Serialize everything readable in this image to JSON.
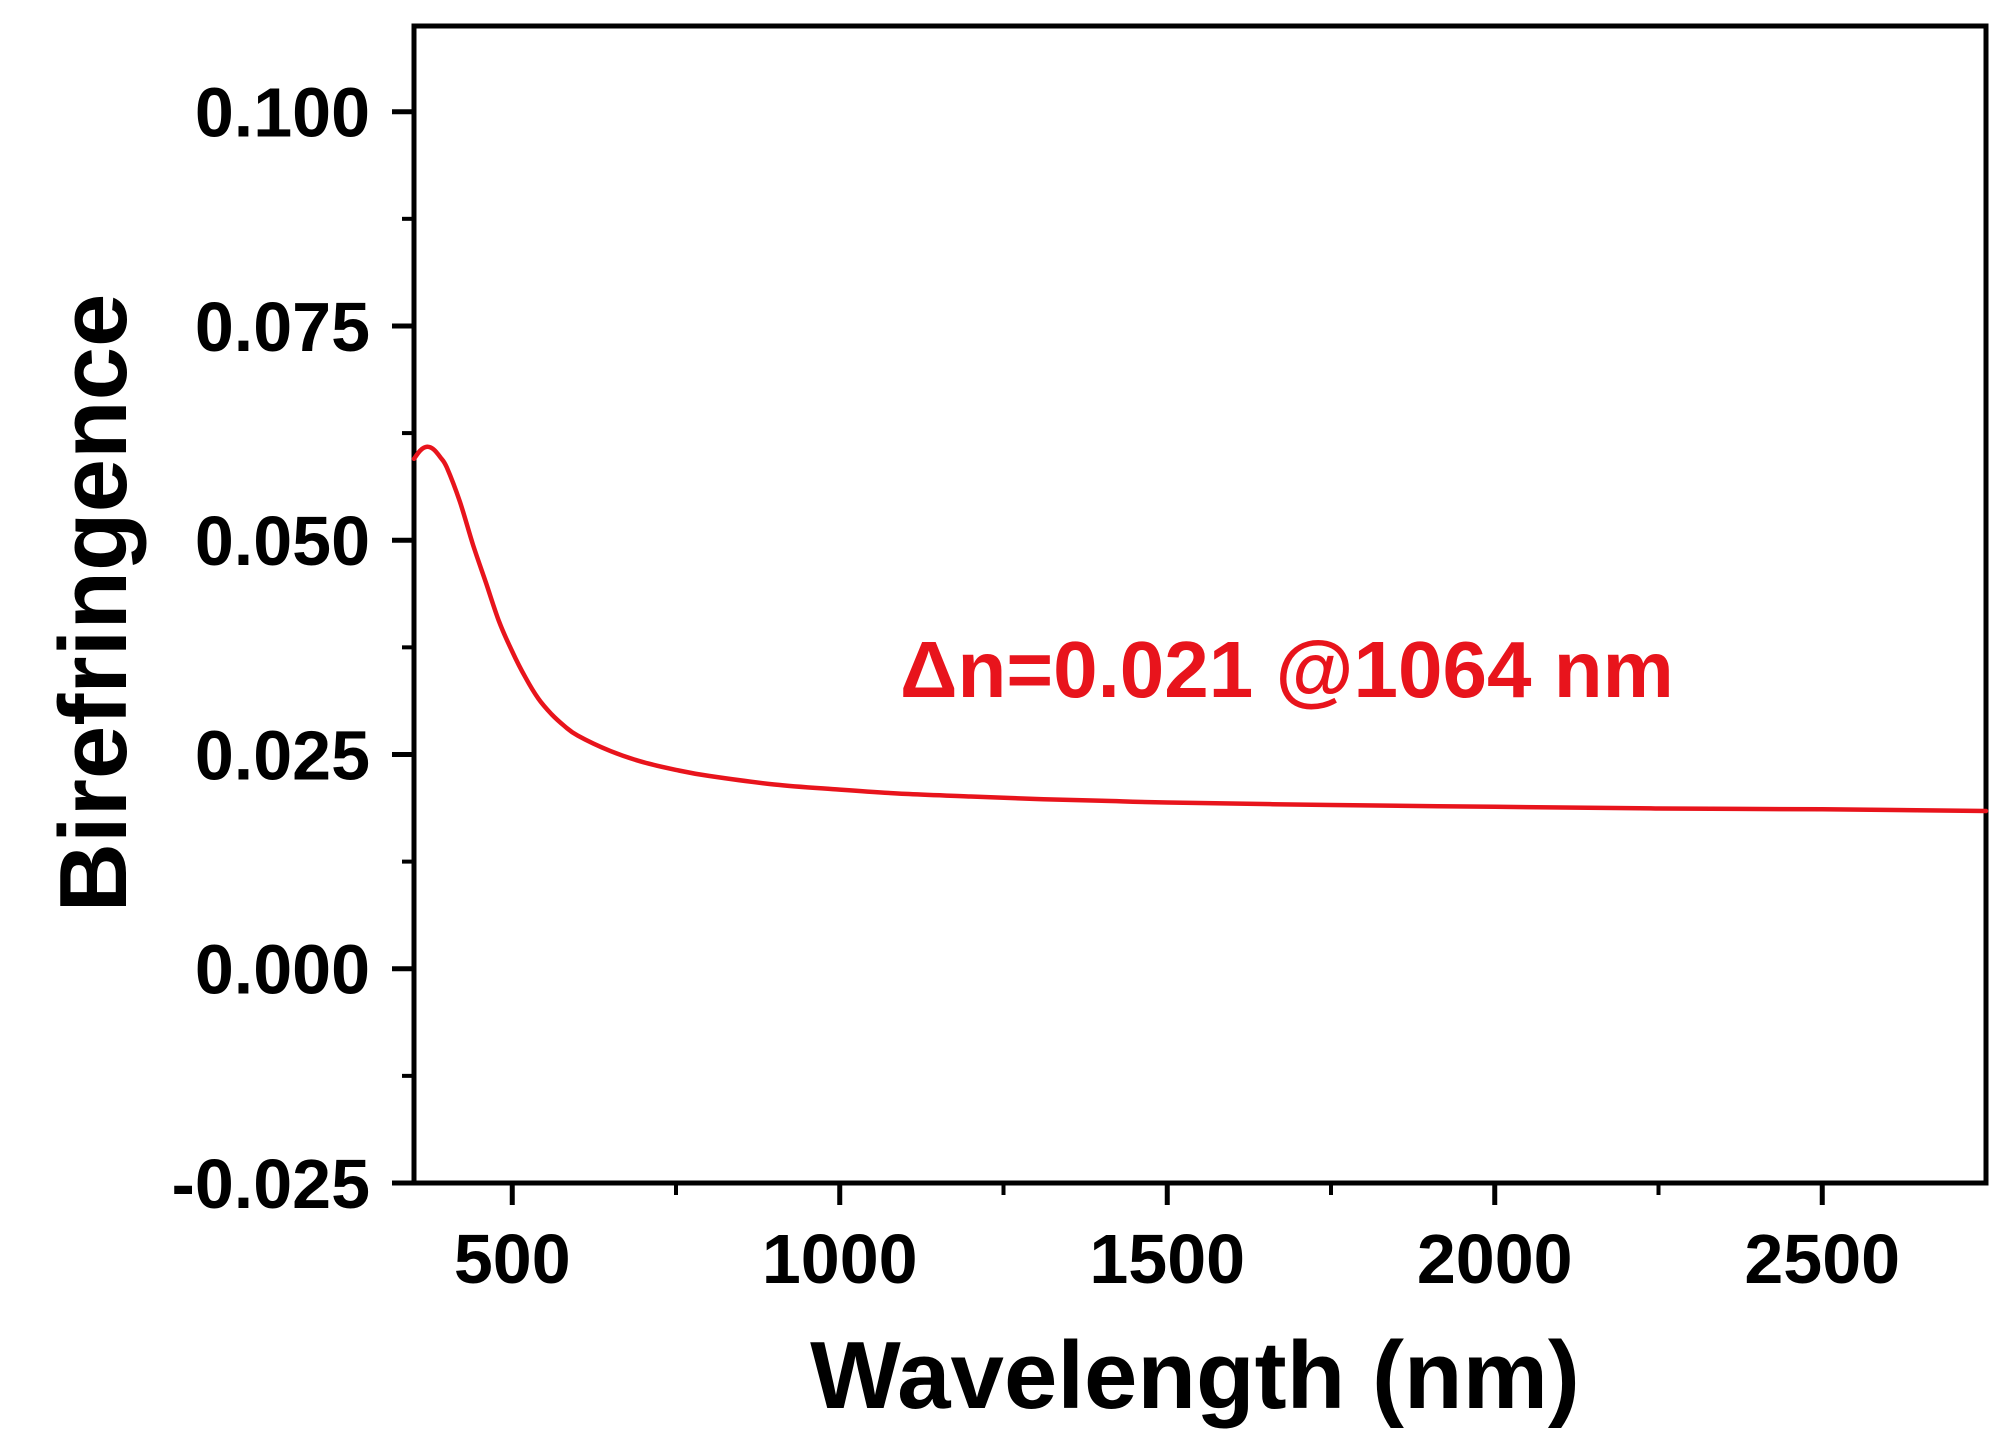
{
  "chart_data": {
    "type": "line",
    "title": "",
    "xlabel": "Wavelength (nm)",
    "ylabel": "Birefringence",
    "xlim": [
      350,
      2750
    ],
    "ylim": [
      -0.025,
      0.11
    ],
    "x_ticks": [
      500,
      1000,
      1500,
      2000,
      2500
    ],
    "x_tick_labels": [
      "500",
      "1000",
      "1500",
      "2000",
      "2500"
    ],
    "x_minor_ticks": [
      750,
      1250,
      1750,
      2250
    ],
    "y_ticks": [
      -0.025,
      0.0,
      0.025,
      0.05,
      0.075,
      0.1
    ],
    "y_tick_labels": [
      "-0.025",
      "0.000",
      "0.025",
      "0.050",
      "0.075",
      "0.100"
    ],
    "y_minor_ticks": [
      -0.0125,
      0.0125,
      0.0375,
      0.0625,
      0.0875
    ],
    "grid": false,
    "legend": "none",
    "annotation": {
      "text": "Δn=0.021 @1064 nm",
      "x": 1070,
      "y": 0.035,
      "color": "#e8141c"
    },
    "series": [
      {
        "color": "#e8141c",
        "x": [
          350,
          360,
          370,
          380,
          390,
          400,
          420,
          440,
          460,
          480,
          500,
          520,
          540,
          560,
          580,
          600,
          650,
          700,
          750,
          800,
          900,
          1000,
          1100,
          1200,
          1300,
          1400,
          1500,
          1750,
          2000,
          2250,
          2500,
          2750
        ],
        "y": [
          0.0595,
          0.0605,
          0.0609,
          0.0606,
          0.0597,
          0.0585,
          0.0545,
          0.0495,
          0.045,
          0.0405,
          0.037,
          0.034,
          0.0315,
          0.0297,
          0.0283,
          0.0272,
          0.0254,
          0.0241,
          0.0232,
          0.0225,
          0.0215,
          0.0209,
          0.0204,
          0.0201,
          0.0198,
          0.0196,
          0.0194,
          0.0191,
          0.0189,
          0.0187,
          0.0186,
          0.0184
        ]
      }
    ]
  }
}
